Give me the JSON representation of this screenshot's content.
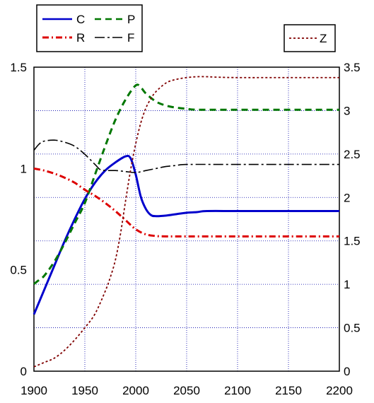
{
  "chart_data": {
    "type": "line",
    "title": "",
    "xlabel": "",
    "ylabel": "",
    "xlim": [
      1900,
      2200
    ],
    "ylim": [
      0,
      1.5
    ],
    "y2lim": [
      0,
      3.5
    ],
    "grid": true,
    "x_ticks": [
      "1900",
      "1950",
      "2000",
      "2050",
      "2100",
      "2150",
      "2200"
    ],
    "y_ticks": [
      "0",
      "0.5",
      "1",
      "1.5"
    ],
    "y2_ticks": [
      "0",
      "0.5",
      "1",
      "1.5",
      "2",
      "2.5",
      "3",
      "3.5"
    ],
    "legends": [
      {
        "placement": "top-left",
        "entries": [
          "C",
          "P",
          "R",
          "F"
        ]
      },
      {
        "placement": "top-right",
        "entries": [
          "Z"
        ]
      }
    ],
    "series": [
      {
        "name": "C",
        "axis": "left",
        "color": "#0000cc",
        "dash": "solid",
        "width": 3,
        "x": [
          1900,
          1910,
          1920,
          1930,
          1940,
          1950,
          1960,
          1970,
          1980,
          1990,
          1995,
          2000,
          2005,
          2010,
          2015,
          2020,
          2030,
          2040,
          2050,
          2060,
          2070,
          2100,
          2150,
          2200
        ],
        "y": [
          0.28,
          0.4,
          0.52,
          0.64,
          0.75,
          0.85,
          0.93,
          0.99,
          1.03,
          1.06,
          1.05,
          0.97,
          0.86,
          0.8,
          0.77,
          0.765,
          0.768,
          0.775,
          0.782,
          0.785,
          0.79,
          0.79,
          0.79,
          0.79
        ]
      },
      {
        "name": "P",
        "axis": "left",
        "color": "#007700",
        "dash": "dashed",
        "width": 3,
        "x": [
          1900,
          1905,
          1910,
          1920,
          1930,
          1940,
          1950,
          1960,
          1970,
          1980,
          1990,
          2000,
          2005,
          2010,
          2020,
          2030,
          2040,
          2050,
          2060,
          2100,
          2150,
          2200
        ],
        "y": [
          0.43,
          0.45,
          0.47,
          0.54,
          0.63,
          0.73,
          0.83,
          0.97,
          1.11,
          1.24,
          1.34,
          1.41,
          1.4,
          1.37,
          1.33,
          1.31,
          1.3,
          1.295,
          1.29,
          1.29,
          1.29,
          1.29
        ]
      },
      {
        "name": "R",
        "axis": "left",
        "color": "#dd0000",
        "dash": "dashdot",
        "width": 3,
        "x": [
          1900,
          1910,
          1920,
          1930,
          1940,
          1950,
          1960,
          1970,
          1980,
          1990,
          2000,
          2010,
          2020,
          2030,
          2050,
          2100,
          2150,
          2200
        ],
        "y": [
          1.0,
          0.99,
          0.975,
          0.955,
          0.93,
          0.895,
          0.865,
          0.83,
          0.79,
          0.745,
          0.7,
          0.675,
          0.667,
          0.665,
          0.665,
          0.665,
          0.665,
          0.665
        ]
      },
      {
        "name": "F",
        "axis": "left",
        "color": "#000000",
        "dash": "longdashdot",
        "width": 1.6,
        "x": [
          1900,
          1905,
          1910,
          1920,
          1930,
          1940,
          1950,
          1960,
          1965,
          1970,
          1980,
          1990,
          2000,
          2010,
          2020,
          2030,
          2040,
          2050,
          2100,
          2150,
          2200
        ],
        "y": [
          1.09,
          1.12,
          1.135,
          1.14,
          1.13,
          1.11,
          1.07,
          1.02,
          0.995,
          0.99,
          0.99,
          0.985,
          0.98,
          0.99,
          1.0,
          1.01,
          1.015,
          1.02,
          1.02,
          1.02,
          1.02
        ]
      },
      {
        "name": "Z",
        "axis": "right",
        "color": "#800000",
        "dash": "dotted",
        "width": 1.8,
        "x": [
          1900,
          1910,
          1920,
          1930,
          1940,
          1950,
          1960,
          1970,
          1975,
          1980,
          1985,
          1990,
          1995,
          2000,
          2005,
          2010,
          2015,
          2020,
          2030,
          2040,
          2050,
          2060,
          2070,
          2080,
          2100,
          2150,
          2200
        ],
        "y": [
          0.05,
          0.1,
          0.15,
          0.24,
          0.36,
          0.5,
          0.66,
          0.92,
          1.08,
          1.28,
          1.58,
          1.96,
          2.32,
          2.62,
          2.86,
          3.03,
          3.14,
          3.22,
          3.32,
          3.36,
          3.38,
          3.39,
          3.39,
          3.385,
          3.38,
          3.38,
          3.38
        ]
      }
    ]
  }
}
